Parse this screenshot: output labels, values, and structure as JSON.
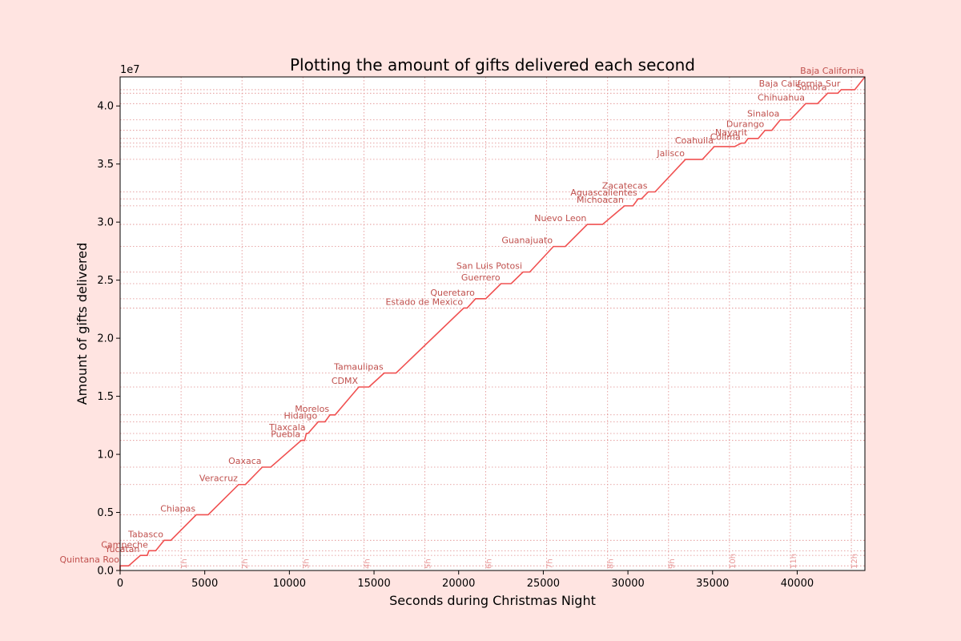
{
  "chart_data": {
    "type": "line",
    "title": "Plotting the amount of gifts delivered each second",
    "xlabel": "Seconds during Christmas Night",
    "ylabel": "Amount of gifts delivered",
    "y_multiplier_label": "1e7",
    "xlim": [
      0,
      44000
    ],
    "ylim": [
      0,
      4.25
    ],
    "x_ticks": [
      0,
      5000,
      10000,
      15000,
      20000,
      25000,
      30000,
      35000,
      40000
    ],
    "x_tick_labels": [
      "0",
      "5000",
      "10000",
      "15000",
      "20000",
      "25000",
      "30000",
      "35000",
      "40000"
    ],
    "y_ticks": [
      0,
      0.5,
      1.0,
      1.5,
      2.0,
      2.5,
      3.0,
      3.5,
      4.0
    ],
    "y_tick_labels": [
      "0.0",
      "0.5",
      "1.0",
      "1.5",
      "2.0",
      "2.5",
      "3.0",
      "3.5",
      "4.0"
    ],
    "grid": "dotted",
    "line_color": "#f05050",
    "label_color": "#c0504d",
    "hour_marks": [
      {
        "label": "1h",
        "x": 3600
      },
      {
        "label": "2h",
        "x": 7200
      },
      {
        "label": "3h",
        "x": 10800
      },
      {
        "label": "4h",
        "x": 14400
      },
      {
        "label": "5h",
        "x": 18000
      },
      {
        "label": "6h",
        "x": 21600
      },
      {
        "label": "7h",
        "x": 25200
      },
      {
        "label": "8h",
        "x": 28800
      },
      {
        "label": "9h",
        "x": 32400
      },
      {
        "label": "10h",
        "x": 36000
      },
      {
        "label": "11h",
        "x": 39600
      },
      {
        "label": "12h",
        "x": 43200
      }
    ],
    "states": [
      {
        "name": "Quintana Roo",
        "x_start": 0,
        "x_end": 500,
        "y": 0.04
      },
      {
        "name": "Yucatan",
        "x_start": 1200,
        "x_end": 1600,
        "y": 0.13
      },
      {
        "name": "Campeche",
        "x_start": 1700,
        "x_end": 2100,
        "y": 0.17
      },
      {
        "name": "Tabasco",
        "x_start": 2600,
        "x_end": 3000,
        "y": 0.26
      },
      {
        "name": "Chiapas",
        "x_start": 4500,
        "x_end": 5200,
        "y": 0.48
      },
      {
        "name": "Veracruz",
        "x_start": 7000,
        "x_end": 7400,
        "y": 0.74
      },
      {
        "name": "Oaxaca",
        "x_start": 8400,
        "x_end": 8900,
        "y": 0.89
      },
      {
        "name": "Puebla",
        "x_start": 10700,
        "x_end": 10900,
        "y": 1.12
      },
      {
        "name": "Tlaxcala",
        "x_start": 11000,
        "x_end": 11100,
        "y": 1.18
      },
      {
        "name": "Hidalgo",
        "x_start": 11700,
        "x_end": 12100,
        "y": 1.28
      },
      {
        "name": "Morelos",
        "x_start": 12400,
        "x_end": 12700,
        "y": 1.34
      },
      {
        "name": "CDMX",
        "x_start": 14100,
        "x_end": 14700,
        "y": 1.58
      },
      {
        "name": "Tamaulipas",
        "x_start": 15600,
        "x_end": 16300,
        "y": 1.7
      },
      {
        "name": "Estado de Mexico",
        "x_start": 20300,
        "x_end": 20500,
        "y": 2.26
      },
      {
        "name": "Queretaro",
        "x_start": 21000,
        "x_end": 21600,
        "y": 2.34
      },
      {
        "name": "Guerrero",
        "x_start": 22500,
        "x_end": 23100,
        "y": 2.47
      },
      {
        "name": "San Luis Potosi",
        "x_start": 23800,
        "x_end": 24200,
        "y": 2.57
      },
      {
        "name": "Guanajuato",
        "x_start": 25600,
        "x_end": 26300,
        "y": 2.79
      },
      {
        "name": "Nuevo Leon",
        "x_start": 27600,
        "x_end": 28500,
        "y": 2.98
      },
      {
        "name": "Michoacan",
        "x_start": 29800,
        "x_end": 30300,
        "y": 3.14
      },
      {
        "name": "Aguascalientes",
        "x_start": 30600,
        "x_end": 30800,
        "y": 3.2
      },
      {
        "name": "Zacatecas",
        "x_start": 31200,
        "x_end": 31600,
        "y": 3.26
      },
      {
        "name": "Jalisco",
        "x_start": 33400,
        "x_end": 34400,
        "y": 3.54
      },
      {
        "name": "Coahuila",
        "x_start": 35100,
        "x_end": 36300,
        "y": 3.65
      },
      {
        "name": "Colima",
        "x_start": 36700,
        "x_end": 36900,
        "y": 3.68
      },
      {
        "name": "Nayarit",
        "x_start": 37100,
        "x_end": 37700,
        "y": 3.72
      },
      {
        "name": "Durango",
        "x_start": 38100,
        "x_end": 38500,
        "y": 3.79
      },
      {
        "name": "Sinaloa",
        "x_start": 39000,
        "x_end": 39600,
        "y": 3.88
      },
      {
        "name": "Chihuahua",
        "x_start": 40500,
        "x_end": 41200,
        "y": 4.02
      },
      {
        "name": "Sonora",
        "x_start": 41800,
        "x_end": 42400,
        "y": 4.11
      },
      {
        "name": "Baja California Sur",
        "x_start": 42600,
        "x_end": 43400,
        "y": 4.14
      },
      {
        "name": "Baja California",
        "x_start": 44000,
        "x_end": 44000,
        "y": 4.25
      }
    ]
  }
}
